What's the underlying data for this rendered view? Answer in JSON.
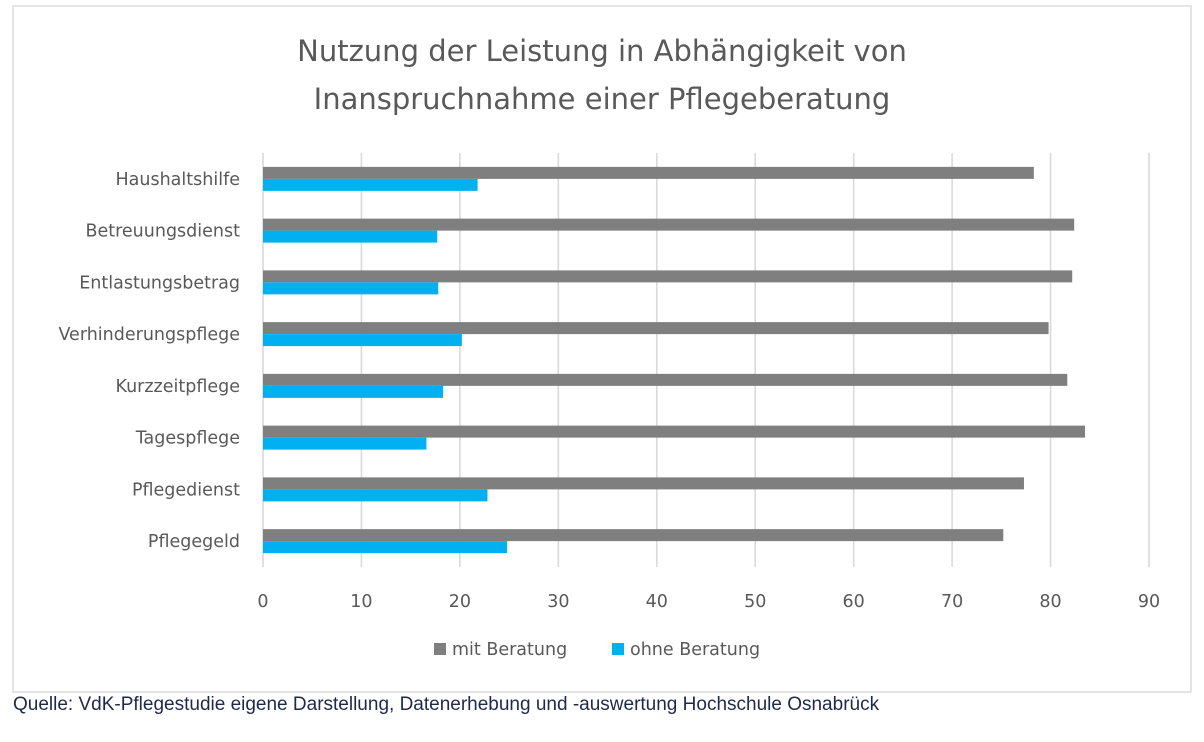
{
  "chart_data": {
    "type": "bar",
    "orientation": "horizontal",
    "title": "Nutzung der Leistung in Abhängigkeit von Inanspruchnahme einer Pflegeberatung",
    "title_lines": [
      "Nutzung der Leistung in Abhängigkeit von",
      "Inanspruchnahme einer Pflegeberatung"
    ],
    "categories": [
      "Haushaltshilfe",
      "Betreuungsdienst",
      "Entlastungsbetrag",
      "Verhinderungspflege",
      "Kurzzeitpflege",
      "Tagespflege",
      "Pflegedienst",
      "Pflegegeld"
    ],
    "series": [
      {
        "name": "mit Beratung",
        "color": "#7f7f7f",
        "values": [
          78.3,
          82.4,
          82.2,
          79.8,
          81.7,
          83.5,
          77.3,
          75.2
        ]
      },
      {
        "name": "ohne Beratung",
        "color": "#00b0f0",
        "values": [
          21.8,
          17.7,
          17.8,
          20.2,
          18.3,
          16.6,
          22.8,
          24.8
        ]
      }
    ],
    "xlabel": "",
    "ylabel": "",
    "xlim": [
      0,
      90
    ],
    "xticks": [
      0,
      10,
      20,
      30,
      40,
      50,
      60,
      70,
      80,
      90
    ],
    "grid": "vertical",
    "legend": "bottom-center"
  },
  "source_note": "Quelle: VdK-Pflegestudie eigene Darstellung, Datenerhebung und -auswertung Hochschule Osnabrück"
}
